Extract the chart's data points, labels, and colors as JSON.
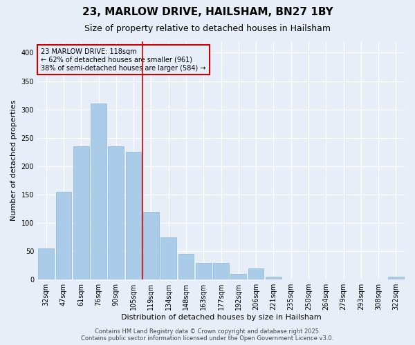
{
  "title": "23, MARLOW DRIVE, HAILSHAM, BN27 1BY",
  "subtitle": "Size of property relative to detached houses in Hailsham",
  "xlabel": "Distribution of detached houses by size in Hailsham",
  "ylabel": "Number of detached properties",
  "categories": [
    "32sqm",
    "47sqm",
    "61sqm",
    "76sqm",
    "90sqm",
    "105sqm",
    "119sqm",
    "134sqm",
    "148sqm",
    "163sqm",
    "177sqm",
    "192sqm",
    "206sqm",
    "221sqm",
    "235sqm",
    "250sqm",
    "264sqm",
    "279sqm",
    "293sqm",
    "308sqm",
    "322sqm"
  ],
  "values": [
    55,
    155,
    235,
    310,
    235,
    225,
    120,
    75,
    45,
    30,
    30,
    10,
    20,
    5,
    0,
    0,
    0,
    0,
    0,
    0,
    5
  ],
  "bar_color": "#aacce8",
  "highlight_color": "#cc0000",
  "red_line_x": 6.5,
  "annotation_text": "23 MARLOW DRIVE: 118sqm\n← 62% of detached houses are smaller (961)\n38% of semi-detached houses are larger (584) →",
  "ylim": [
    0,
    420
  ],
  "yticks": [
    0,
    50,
    100,
    150,
    200,
    250,
    300,
    350,
    400
  ],
  "footer": "Contains HM Land Registry data © Crown copyright and database right 2025.\nContains public sector information licensed under the Open Government Licence v3.0.",
  "bg_color": "#e8eef8",
  "grid_color": "#ffffff",
  "title_fontsize": 11,
  "subtitle_fontsize": 9,
  "axis_label_fontsize": 8,
  "tick_fontsize": 7,
  "footer_fontsize": 6
}
